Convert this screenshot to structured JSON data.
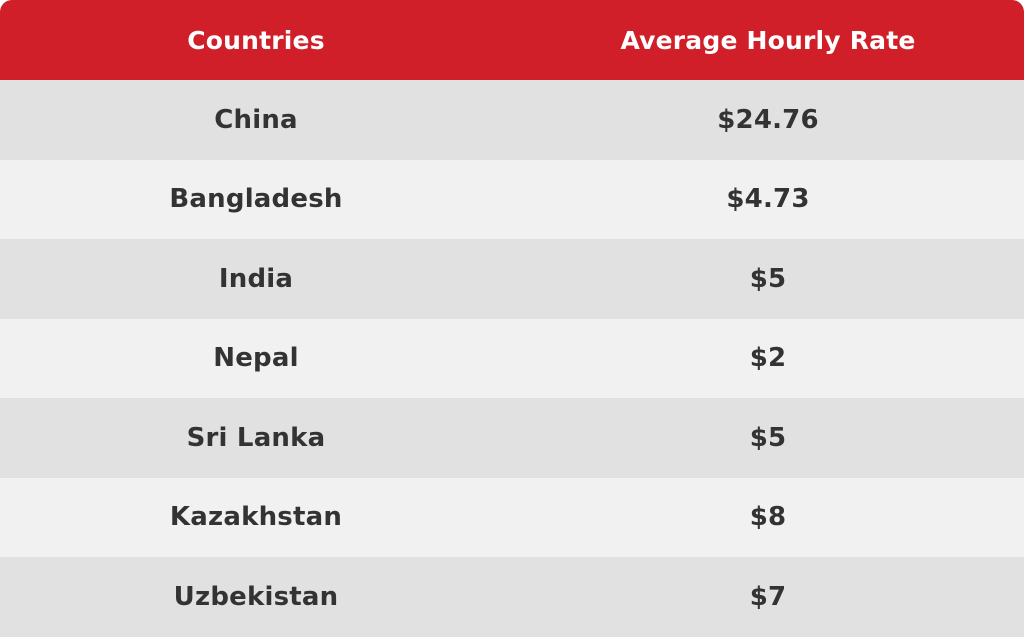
{
  "colors": {
    "header_bg": "#d01f28",
    "header_text": "#ffffff",
    "row_dark": "#e2e1e1",
    "row_light": "#f1f1f1",
    "body_text": "#333333"
  },
  "header": {
    "col_country": "Countries",
    "col_rate": "Average Hourly Rate"
  },
  "rows": [
    {
      "country": "China",
      "rate": "$24.76"
    },
    {
      "country": "Bangladesh",
      "rate": "$4.73"
    },
    {
      "country": "India",
      "rate": "$5"
    },
    {
      "country": "Nepal",
      "rate": "$2"
    },
    {
      "country": "Sri Lanka",
      "rate": "$5"
    },
    {
      "country": "Kazakhstan",
      "rate": "$8"
    },
    {
      "country": "Uzbekistan",
      "rate": "$7"
    }
  ]
}
